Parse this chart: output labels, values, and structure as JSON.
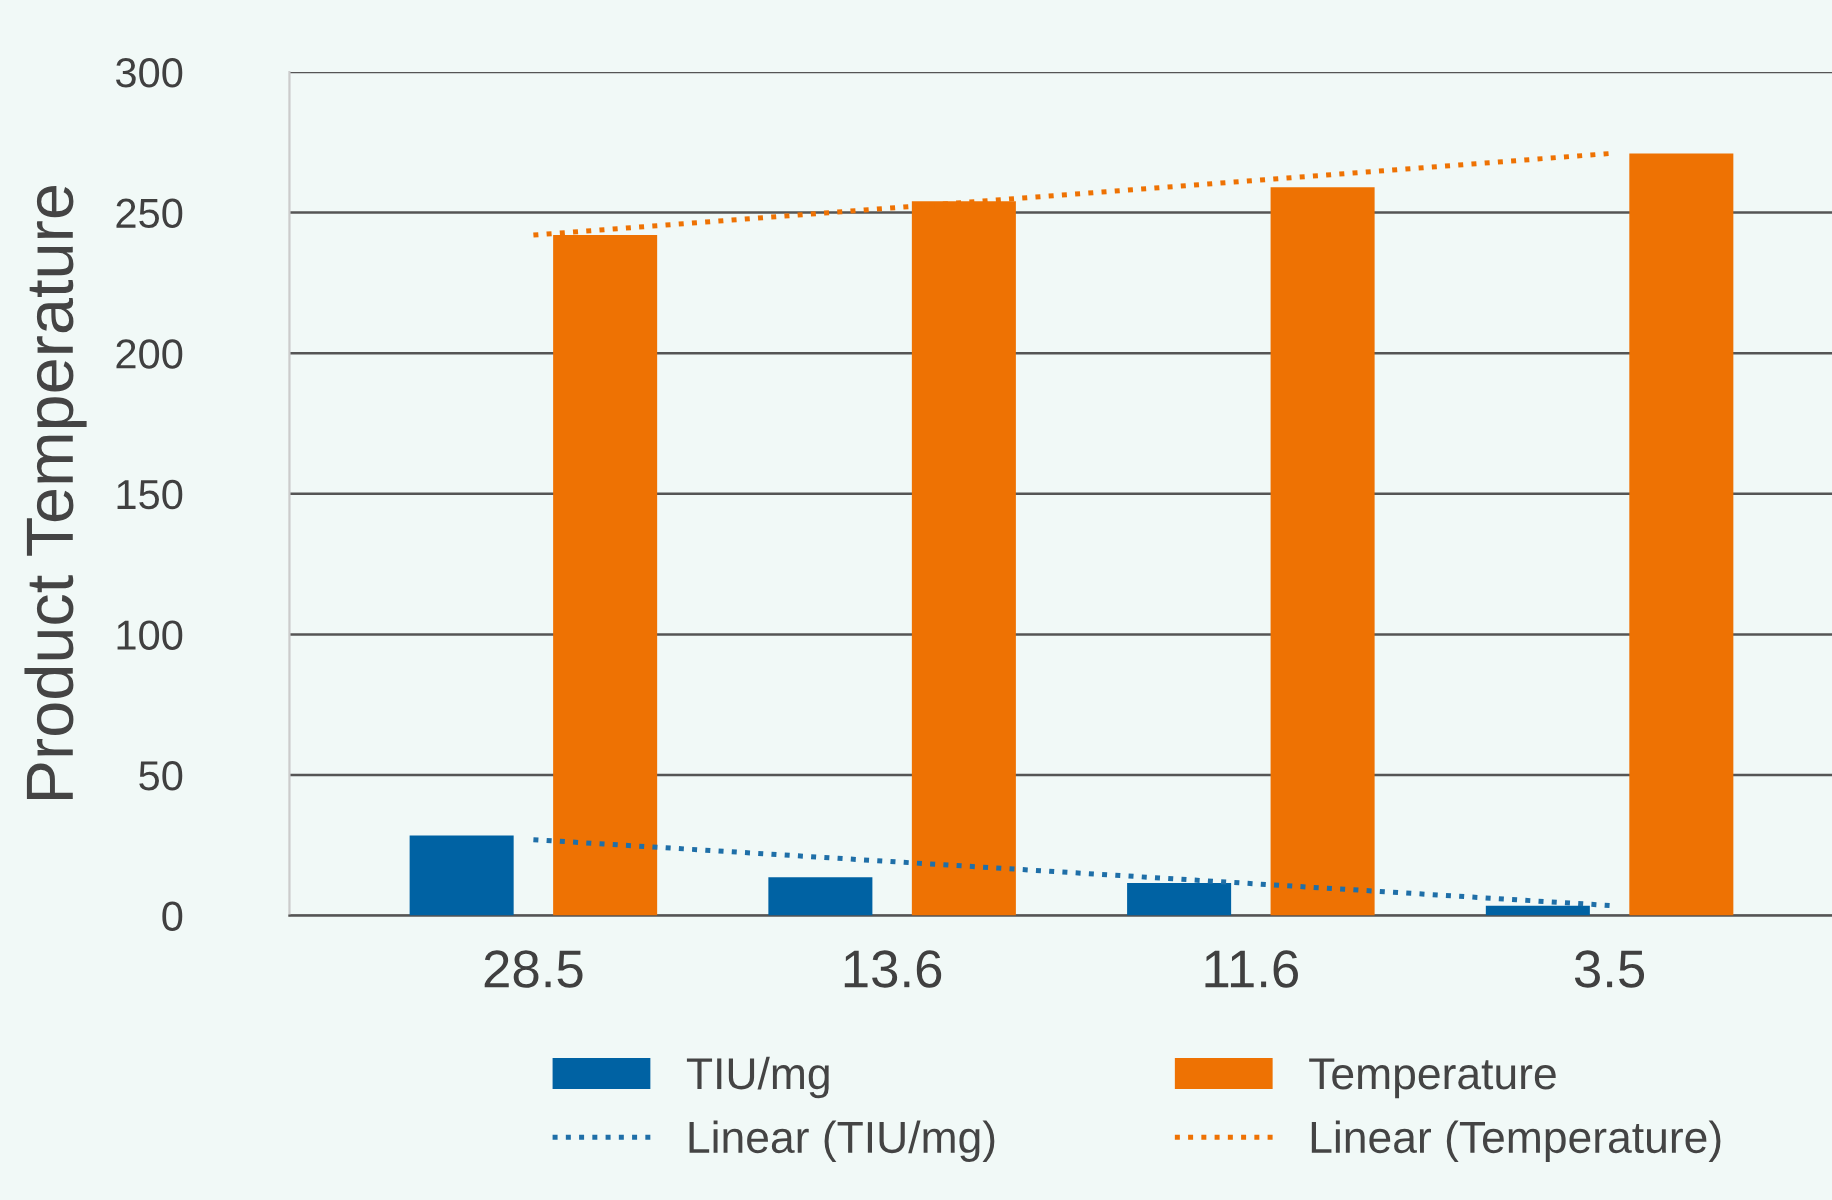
{
  "chart_data": {
    "type": "bar",
    "ylabel": "Product Temperature",
    "categories": [
      "28.5",
      "13.6",
      "11.6",
      "3.5"
    ],
    "series": [
      {
        "name": "TIU/mg",
        "color": "#0062a3",
        "values": [
          28.5,
          13.6,
          11.6,
          3.5
        ]
      },
      {
        "name": "Temperature",
        "color": "#ee7203",
        "values": [
          242,
          254,
          259,
          271
        ]
      },
      {
        "name": "Linear (TIU/mg)",
        "type": "line",
        "line_style": "dotted",
        "color": "#1f6fa8",
        "x": [
          "28.5",
          "3.5"
        ],
        "values": [
          27,
          3.6
        ]
      },
      {
        "name": "Linear (Temperature)",
        "type": "line",
        "line_style": "dotted",
        "color": "#ee7203",
        "x": [
          "28.5",
          "3.5"
        ],
        "values": [
          242,
          271
        ]
      }
    ],
    "ylim": [
      0,
      300
    ],
    "yticks": [
      0,
      50,
      100,
      150,
      200,
      250,
      300
    ],
    "grid": "y",
    "legend": "bottom"
  }
}
